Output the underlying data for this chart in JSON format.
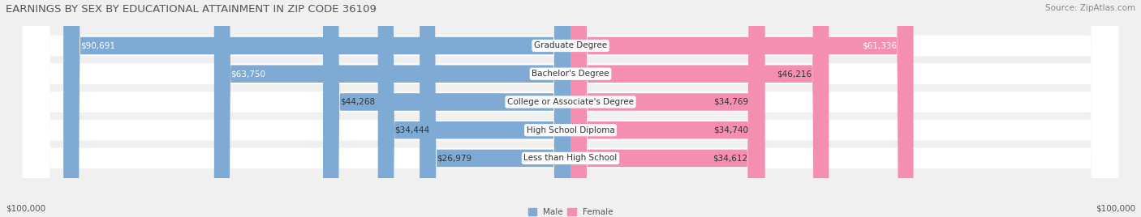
{
  "title": "EARNINGS BY SEX BY EDUCATIONAL ATTAINMENT IN ZIP CODE 36109",
  "source": "Source: ZipAtlas.com",
  "categories": [
    "Less than High School",
    "High School Diploma",
    "College or Associate's Degree",
    "Bachelor's Degree",
    "Graduate Degree"
  ],
  "male_values": [
    26979,
    34444,
    44268,
    63750,
    90691
  ],
  "female_values": [
    34612,
    34740,
    34769,
    46216,
    61336
  ],
  "male_labels": [
    "$26,979",
    "$34,444",
    "$44,268",
    "$63,750",
    "$90,691"
  ],
  "female_labels": [
    "$34,612",
    "$34,740",
    "$34,769",
    "$46,216",
    "$61,336"
  ],
  "male_color": "#7eaad4",
  "female_color": "#f48fb1",
  "axis_label_left": "$100,000",
  "axis_label_right": "$100,000",
  "max_val": 100000,
  "background_color": "#f0f0f0",
  "title_fontsize": 9.5,
  "source_fontsize": 7.5,
  "label_fontsize": 7.5,
  "category_fontsize": 7.5,
  "bar_height": 0.62
}
